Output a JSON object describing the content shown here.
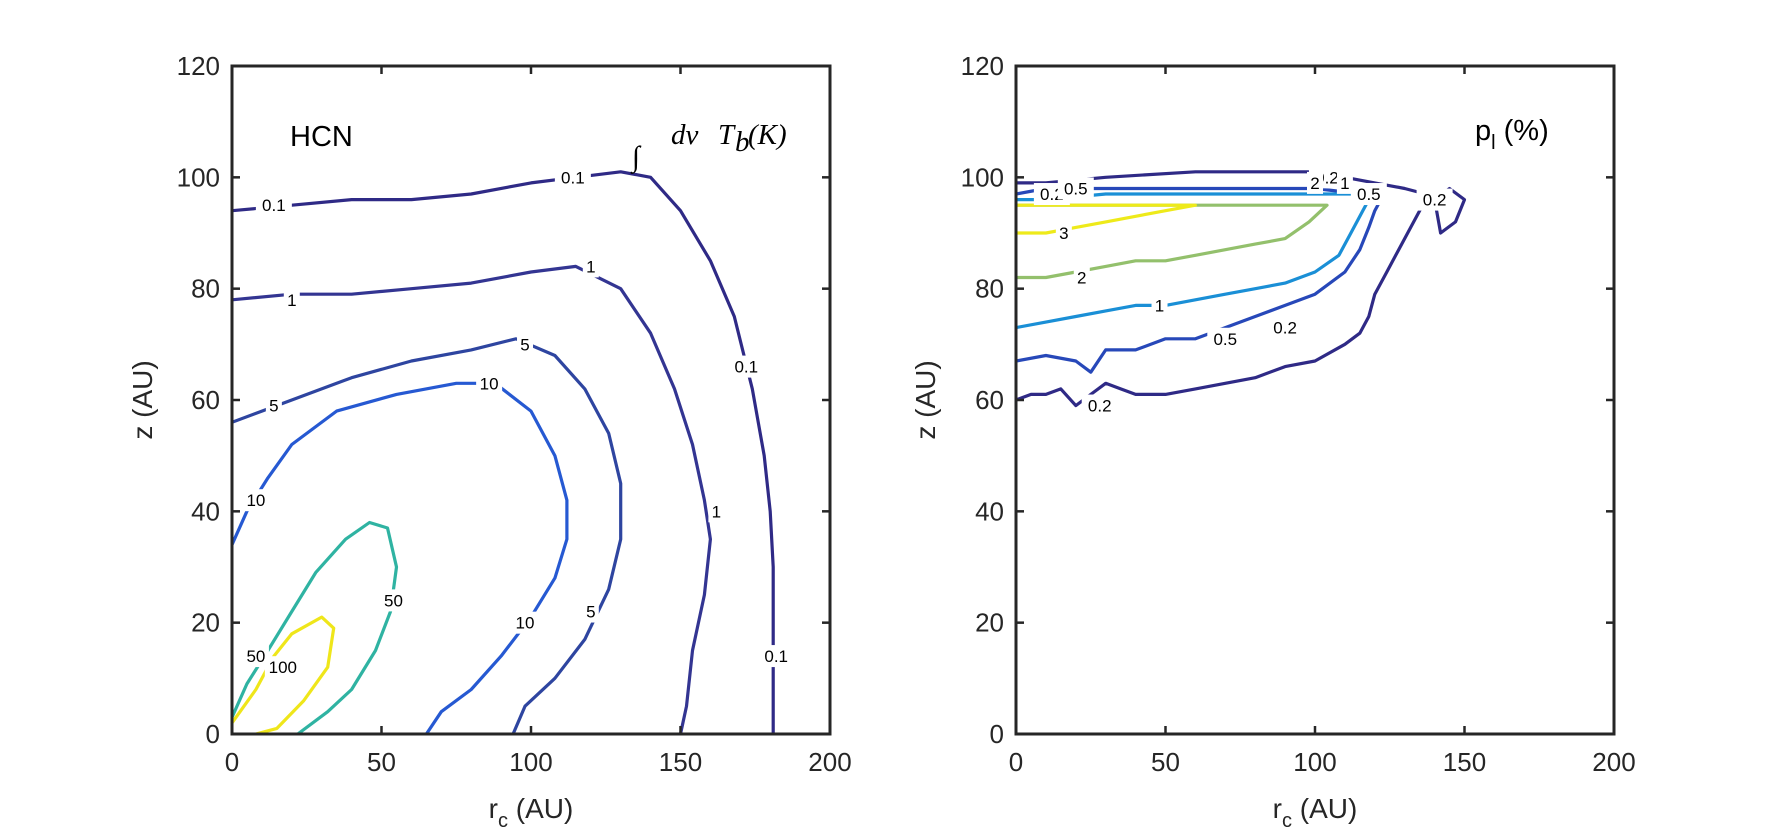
{
  "chart_data": [
    {
      "type": "contour",
      "title": "",
      "annotation_species": "HCN",
      "annotation_quantity": "∫ dv T_b(K)",
      "annotation_quantity_parts": {
        "integral": "∫",
        "dv": "dv",
        "tb": "T",
        "tb_sub": "b",
        "unit": "(K)"
      },
      "xlabel": "r",
      "xlabel_sub": "c",
      "xlabel_unit": " (AU)",
      "ylabel": "z (AU)",
      "xlim": [
        0,
        200
      ],
      "ylim": [
        0,
        120
      ],
      "xticks": [
        "0",
        "50",
        "100",
        "150",
        "200"
      ],
      "yticks": [
        "0",
        "20",
        "40",
        "60",
        "80",
        "100",
        "120"
      ],
      "contours": [
        {
          "level": "0.1",
          "color": "#2f2a86",
          "labels": [
            [
              14,
              95
            ],
            [
              114,
              100
            ],
            [
              172,
              66
            ],
            [
              182,
              14
            ]
          ],
          "points": [
            [
              0,
              94
            ],
            [
              20,
              95
            ],
            [
              40,
              96
            ],
            [
              60,
              96
            ],
            [
              80,
              97
            ],
            [
              100,
              99
            ],
            [
              115,
              100
            ],
            [
              130,
              101
            ],
            [
              140,
              100
            ],
            [
              150,
              94
            ],
            [
              160,
              85
            ],
            [
              168,
              75
            ],
            [
              174,
              62
            ],
            [
              178,
              50
            ],
            [
              180,
              40
            ],
            [
              181,
              30
            ],
            [
              181,
              15
            ],
            [
              181,
              0
            ]
          ]
        },
        {
          "level": "1",
          "color": "#333592",
          "labels": [
            [
              20,
              78
            ],
            [
              120,
              84
            ],
            [
              162,
              40
            ]
          ],
          "points": [
            [
              0,
              78
            ],
            [
              20,
              79
            ],
            [
              40,
              79
            ],
            [
              60,
              80
            ],
            [
              80,
              81
            ],
            [
              100,
              83
            ],
            [
              115,
              84
            ],
            [
              130,
              80
            ],
            [
              140,
              72
            ],
            [
              148,
              62
            ],
            [
              154,
              52
            ],
            [
              158,
              42
            ],
            [
              160,
              35
            ],
            [
              158,
              25
            ],
            [
              154,
              15
            ],
            [
              152,
              5
            ],
            [
              150,
              0
            ]
          ]
        },
        {
          "level": "5",
          "color": "#2e45a0",
          "labels": [
            [
              14,
              59
            ],
            [
              98,
              70
            ],
            [
              120,
              22
            ]
          ],
          "points": [
            [
              0,
              56
            ],
            [
              10,
              58
            ],
            [
              20,
              60
            ],
            [
              40,
              64
            ],
            [
              60,
              67
            ],
            [
              80,
              69
            ],
            [
              95,
              71
            ],
            [
              108,
              68
            ],
            [
              118,
              62
            ],
            [
              126,
              54
            ],
            [
              130,
              45
            ],
            [
              130,
              35
            ],
            [
              126,
              26
            ],
            [
              118,
              17
            ],
            [
              108,
              10
            ],
            [
              98,
              5
            ],
            [
              94,
              0
            ]
          ]
        },
        {
          "level": "10",
          "color": "#2659d2",
          "labels": [
            [
              8,
              42
            ],
            [
              86,
              63
            ],
            [
              98,
              20
            ]
          ],
          "points": [
            [
              0,
              34
            ],
            [
              5,
              40
            ],
            [
              12,
              46
            ],
            [
              20,
              52
            ],
            [
              35,
              58
            ],
            [
              55,
              61
            ],
            [
              75,
              63
            ],
            [
              88,
              63
            ],
            [
              100,
              58
            ],
            [
              108,
              50
            ],
            [
              112,
              42
            ],
            [
              112,
              35
            ],
            [
              108,
              28
            ],
            [
              100,
              21
            ],
            [
              90,
              14
            ],
            [
              80,
              8
            ],
            [
              70,
              4
            ],
            [
              65,
              0
            ]
          ]
        },
        {
          "level": "50",
          "color": "#2fb3a2",
          "labels": [
            [
              8,
              14
            ],
            [
              54,
              24
            ]
          ],
          "points": [
            [
              0,
              3
            ],
            [
              5,
              9
            ],
            [
              12,
              15
            ],
            [
              20,
              22
            ],
            [
              28,
              29
            ],
            [
              38,
              35
            ],
            [
              46,
              38
            ],
            [
              52,
              37
            ],
            [
              55,
              30
            ],
            [
              53,
              22
            ],
            [
              48,
              15
            ],
            [
              40,
              8
            ],
            [
              32,
              4
            ],
            [
              22,
              0
            ]
          ]
        },
        {
          "level": "100",
          "color": "#efe61a",
          "labels": [
            [
              17,
              12
            ]
          ],
          "points": [
            [
              0,
              2
            ],
            [
              8,
              8
            ],
            [
              14,
              14
            ],
            [
              20,
              18
            ],
            [
              30,
              21
            ],
            [
              34,
              19
            ],
            [
              32,
              12
            ],
            [
              24,
              6
            ],
            [
              15,
              1
            ],
            [
              8,
              0
            ]
          ]
        }
      ]
    },
    {
      "type": "contour",
      "title": "",
      "annotation_quantity": "p",
      "annotation_quantity_sub": "l",
      "annotation_quantity_unit": " (%)",
      "xlabel": "r",
      "xlabel_sub": "c",
      "xlabel_unit": " (AU)",
      "ylabel": "z (AU)",
      "xlim": [
        0,
        200
      ],
      "ylim": [
        0,
        120
      ],
      "xticks": [
        "0",
        "50",
        "100",
        "150",
        "200"
      ],
      "yticks": [
        "0",
        "20",
        "40",
        "60",
        "80",
        "100",
        "120"
      ],
      "contours": [
        {
          "level": "0.2",
          "color": "#2f2a86",
          "labels": [
            [
              12,
              97
            ],
            [
              104,
              100
            ],
            [
              140,
              96
            ],
            [
              90,
              73
            ],
            [
              28,
              59
            ]
          ],
          "points": [
            [
              0,
              60
            ],
            [
              5,
              61
            ],
            [
              10,
              61
            ],
            [
              15,
              62
            ],
            [
              20,
              59
            ],
            [
              25,
              61
            ],
            [
              30,
              63
            ],
            [
              35,
              62
            ],
            [
              40,
              61
            ],
            [
              50,
              61
            ],
            [
              60,
              62
            ],
            [
              70,
              63
            ],
            [
              80,
              64
            ],
            [
              90,
              66
            ],
            [
              100,
              67
            ],
            [
              110,
              70
            ],
            [
              115,
              72
            ],
            [
              118,
              75
            ],
            [
              120,
              79
            ],
            [
              124,
              83
            ],
            [
              128,
              87
            ],
            [
              132,
              91
            ],
            [
              136,
              95
            ],
            [
              137,
              97
            ],
            [
              130,
              98
            ],
            [
              120,
              99
            ],
            [
              110,
              100
            ],
            [
              100,
              101
            ],
            [
              95,
              101
            ],
            [
              60,
              101
            ],
            [
              30,
              100
            ],
            [
              10,
              99
            ],
            [
              0,
              99
            ]
          ]
        },
        {
          "level": "0.2",
          "color": "#2f2a86",
          "labels": [],
          "points": [
            [
              140,
              96
            ],
            [
              145,
              98
            ],
            [
              150,
              96
            ],
            [
              147,
              92
            ],
            [
              142,
              90
            ],
            [
              140,
              96
            ]
          ]
        },
        {
          "level": "0.5",
          "color": "#2748b9",
          "labels": [
            [
              20,
              98
            ],
            [
              70,
              71
            ],
            [
              118,
              97
            ]
          ],
          "points": [
            [
              0,
              67
            ],
            [
              10,
              68
            ],
            [
              20,
              67
            ],
            [
              25,
              65
            ],
            [
              30,
              69
            ],
            [
              40,
              69
            ],
            [
              50,
              71
            ],
            [
              60,
              71
            ],
            [
              70,
              73
            ],
            [
              80,
              75
            ],
            [
              90,
              77
            ],
            [
              100,
              79
            ],
            [
              110,
              83
            ],
            [
              115,
              87
            ],
            [
              118,
              91
            ],
            [
              120,
              94
            ],
            [
              122,
              96
            ],
            [
              116,
              97
            ],
            [
              100,
              98
            ],
            [
              95,
              98
            ],
            [
              60,
              98
            ],
            [
              30,
              98
            ],
            [
              10,
              98
            ],
            [
              0,
              97
            ]
          ]
        },
        {
          "level": "1",
          "color": "#1a8fd6",
          "labels": [
            [
              48,
              77
            ],
            [
              110,
              99
            ]
          ],
          "points": [
            [
              0,
              73
            ],
            [
              10,
              74
            ],
            [
              20,
              75
            ],
            [
              30,
              76
            ],
            [
              40,
              77
            ],
            [
              50,
              77
            ],
            [
              60,
              78
            ],
            [
              70,
              79
            ],
            [
              80,
              80
            ],
            [
              90,
              81
            ],
            [
              100,
              83
            ],
            [
              108,
              86
            ],
            [
              112,
              90
            ],
            [
              116,
              94
            ],
            [
              118,
              96
            ],
            [
              112,
              97
            ],
            [
              100,
              97
            ],
            [
              95,
              97
            ],
            [
              60,
              97
            ],
            [
              30,
              97
            ],
            [
              10,
              96
            ],
            [
              0,
              96
            ]
          ]
        },
        {
          "level": "2",
          "color": "#93c06c",
          "labels": [
            [
              22,
              82
            ],
            [
              100,
              99
            ]
          ],
          "points": [
            [
              0,
              82
            ],
            [
              10,
              82
            ],
            [
              20,
              83
            ],
            [
              30,
              84
            ],
            [
              40,
              85
            ],
            [
              50,
              85
            ],
            [
              60,
              86
            ],
            [
              70,
              87
            ],
            [
              80,
              88
            ],
            [
              90,
              89
            ],
            [
              98,
              92
            ],
            [
              104,
              95
            ],
            [
              98,
              95
            ],
            [
              80,
              95
            ],
            [
              60,
              95
            ],
            [
              30,
              95
            ],
            [
              10,
              95
            ],
            [
              0,
              95
            ]
          ]
        },
        {
          "level": "3",
          "color": "#eeea1a",
          "labels": [
            [
              16,
              90
            ]
          ],
          "points": [
            [
              0,
              90
            ],
            [
              10,
              90
            ],
            [
              20,
              91
            ],
            [
              30,
              92
            ],
            [
              40,
              93
            ],
            [
              50,
              94
            ],
            [
              60,
              95
            ],
            [
              50,
              95
            ],
            [
              30,
              95
            ],
            [
              10,
              95
            ],
            [
              0,
              95
            ]
          ]
        }
      ]
    }
  ]
}
